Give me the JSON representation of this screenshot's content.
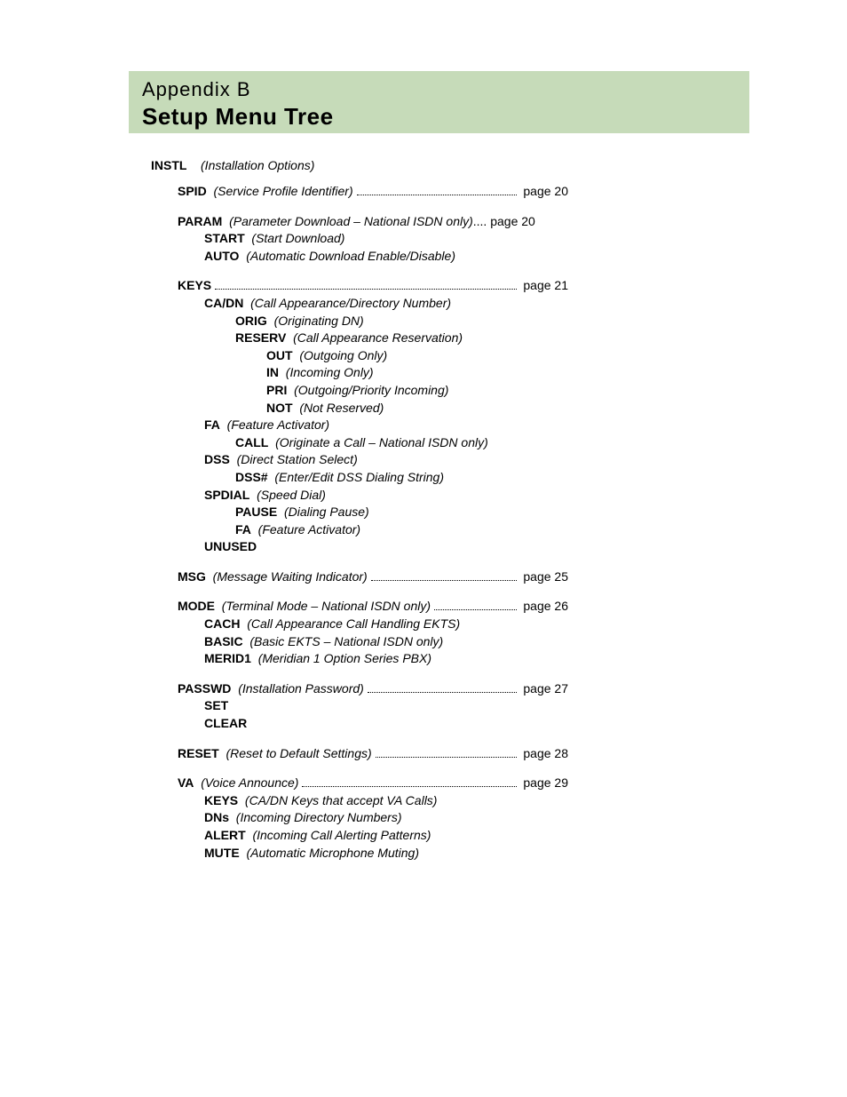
{
  "header": {
    "appendix": "Appendix B",
    "title": "Setup Menu Tree",
    "band_color": "#c6dbb9"
  },
  "section": {
    "code": "INSTL",
    "desc": "(Installation Options)"
  },
  "items": [
    {
      "level": 1,
      "code": "SPID",
      "desc": "(Service Profile Identifier)",
      "page": "page 20",
      "leader": true
    },
    {
      "level": 1,
      "code": "PARAM",
      "desc": "(Parameter Download – National ISDN only)",
      "page": "page 20",
      "leader": false,
      "gapbefore": true
    },
    {
      "level": 2,
      "code": "START",
      "desc": "(Start Download)"
    },
    {
      "level": 2,
      "code": "AUTO",
      "desc": "(Automatic Download Enable/Disable)"
    },
    {
      "level": 1,
      "code": "KEYS",
      "desc": "",
      "page": "page 21",
      "leader": true,
      "gapbefore": true
    },
    {
      "level": 2,
      "code": "CA/DN",
      "desc": "(Call Appearance/Directory Number)"
    },
    {
      "level": 3,
      "code": "ORIG",
      "desc": "(Originating DN)"
    },
    {
      "level": 3,
      "code": "RESERV",
      "desc": "(Call Appearance Reservation)"
    },
    {
      "level": 4,
      "code": "OUT",
      "desc": "(Outgoing Only)"
    },
    {
      "level": 4,
      "code": "IN",
      "desc": "(Incoming Only)"
    },
    {
      "level": 4,
      "code": "PRI",
      "desc": "(Outgoing/Priority Incoming)"
    },
    {
      "level": 4,
      "code": "NOT",
      "desc": "(Not Reserved)"
    },
    {
      "level": 2,
      "code": "FA",
      "desc": "(Feature Activator)"
    },
    {
      "level": 3,
      "code": "CALL",
      "desc": "(Originate a Call – National ISDN only)"
    },
    {
      "level": 2,
      "code": "DSS",
      "desc": "(Direct Station Select)"
    },
    {
      "level": 3,
      "code": "DSS#",
      "desc": "(Enter/Edit DSS Dialing String)"
    },
    {
      "level": 2,
      "code": "SPDIAL",
      "desc": "(Speed Dial)"
    },
    {
      "level": 3,
      "code": "PAUSE",
      "desc": "(Dialing Pause)"
    },
    {
      "level": 3,
      "code": "FA",
      "desc": "(Feature Activator)"
    },
    {
      "level": 2,
      "code": "UNUSED",
      "desc": ""
    },
    {
      "level": 1,
      "code": "MSG",
      "desc": "(Message Waiting Indicator)",
      "page": "page 25",
      "leader": true,
      "gapbefore": true,
      "descplain": true
    },
    {
      "level": 1,
      "code": "MODE",
      "desc": "(Terminal Mode – National ISDN only)",
      "page": "page 26",
      "leader": true,
      "gapbefore": true
    },
    {
      "level": 2,
      "code": "CACH",
      "desc": "(Call Appearance Call Handling EKTS)"
    },
    {
      "level": 2,
      "code": "BASIC",
      "desc": "(Basic EKTS – National ISDN only)"
    },
    {
      "level": 2,
      "code": "MERID1",
      "desc": "(Meridian 1 Option Series PBX)"
    },
    {
      "level": 1,
      "code": "PASSWD",
      "desc": "(Installation Password)",
      "page": "page 27",
      "leader": true,
      "gapbefore": true
    },
    {
      "level": 2,
      "code": "SET",
      "desc": ""
    },
    {
      "level": 2,
      "code": "CLEAR",
      "desc": ""
    },
    {
      "level": 1,
      "code": "RESET",
      "desc": "(Reset to Default Settings)",
      "page": "page 28",
      "leader": true,
      "gapbefore": true
    },
    {
      "level": 1,
      "code": "VA",
      "desc": "(Voice Announce)",
      "page": "page 29",
      "leader": true,
      "gapbefore": true
    },
    {
      "level": 2,
      "code": "KEYS",
      "desc": "(CA/DN Keys that accept VA Calls)"
    },
    {
      "level": 2,
      "code": "DNs",
      "desc": "(Incoming Directory Numbers)"
    },
    {
      "level": 2,
      "code": "ALERT",
      "desc": "(Incoming Call Alerting Patterns)"
    },
    {
      "level": 2,
      "code": "MUTE",
      "desc": "(Automatic Microphone Muting)"
    }
  ]
}
